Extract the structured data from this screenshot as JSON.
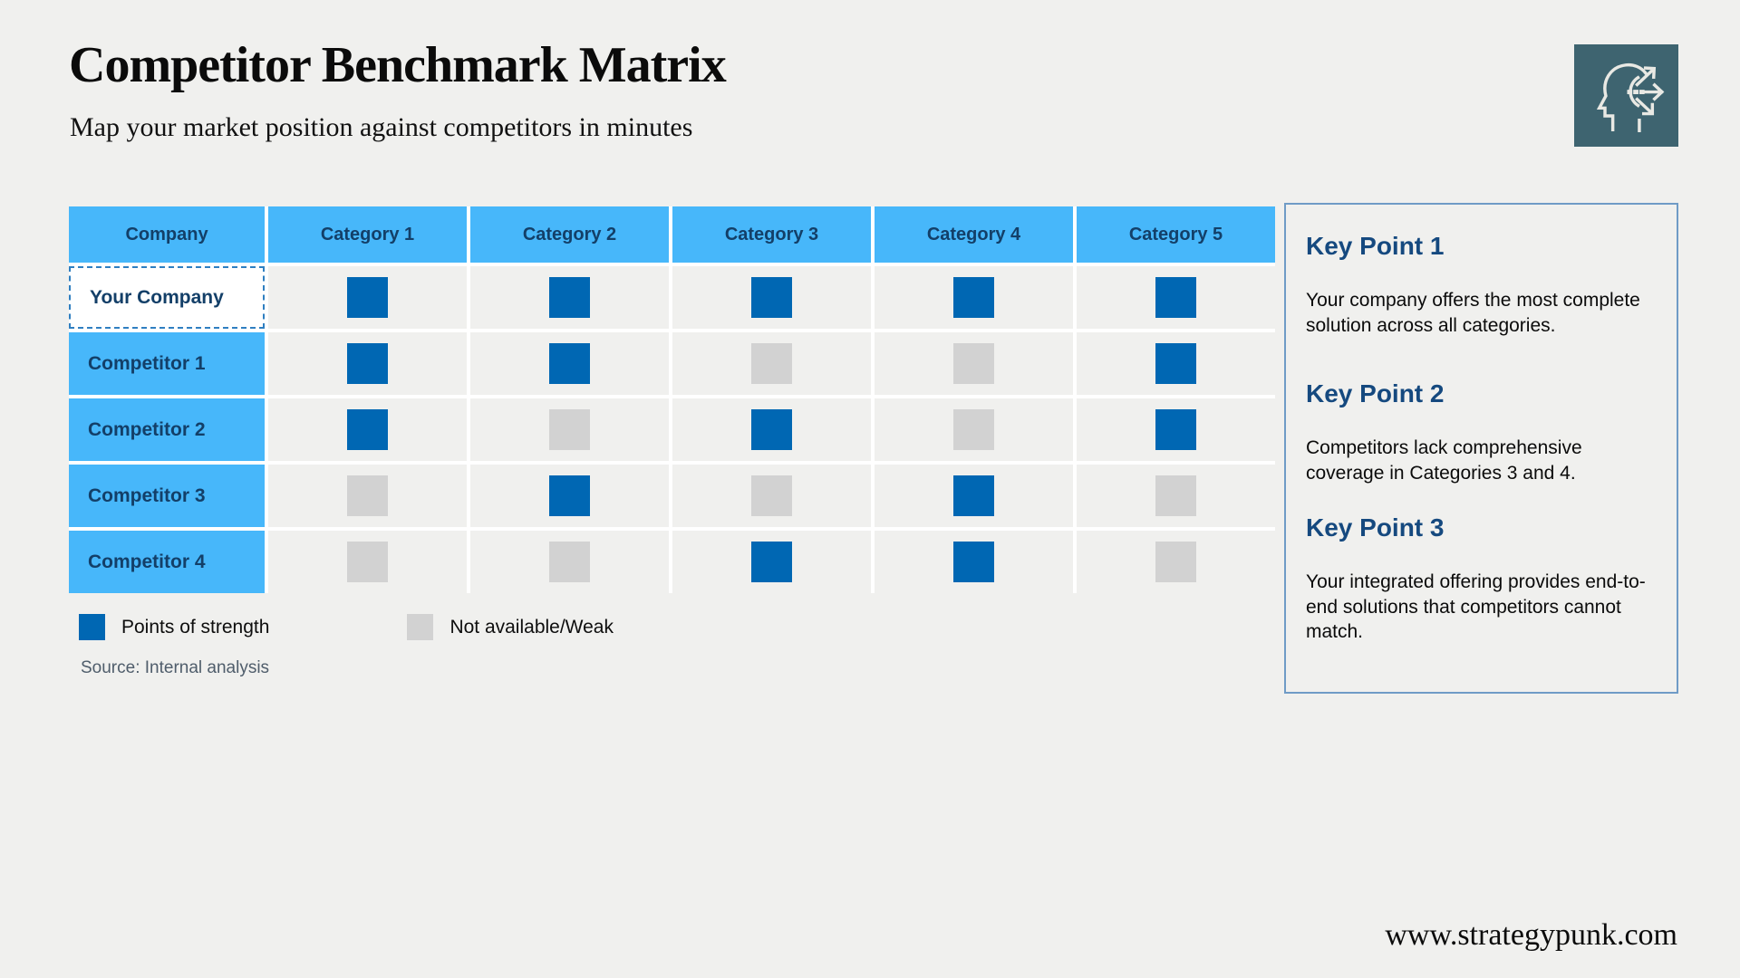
{
  "page": {
    "title": "Competitor Benchmark Matrix",
    "subtitle": "Map your market position against competitors in minutes",
    "footer_url": "www.strategypunk.com"
  },
  "logo": {
    "icon": "head-with-arrows-icon",
    "background_color": "#3e6470"
  },
  "matrix": {
    "columns": [
      "Company",
      "Category 1",
      "Category 2",
      "Category 3",
      "Category 4",
      "Category 5"
    ],
    "rows": [
      {
        "label": "Your Company",
        "highlight": true,
        "values": [
          1,
          1,
          1,
          1,
          1
        ]
      },
      {
        "label": "Competitor 1",
        "highlight": false,
        "values": [
          1,
          1,
          0,
          0,
          1
        ]
      },
      {
        "label": "Competitor 2",
        "highlight": false,
        "values": [
          1,
          0,
          1,
          0,
          1
        ]
      },
      {
        "label": "Competitor 3",
        "highlight": false,
        "values": [
          0,
          1,
          0,
          1,
          0
        ]
      },
      {
        "label": "Competitor 4",
        "highlight": false,
        "values": [
          0,
          0,
          1,
          1,
          0
        ]
      }
    ],
    "value_meaning": {
      "1": "Points of strength",
      "0": "Not available/Weak"
    }
  },
  "legend": {
    "strength_label": "Points of strength",
    "weak_label": "Not available/Weak",
    "strength_color": "#0067b3",
    "weak_color": "#d2d2d2"
  },
  "source": "Source: Internal analysis",
  "key_points": [
    {
      "heading": "Key Point 1",
      "text": "Your company offers the most complete solution across all categories."
    },
    {
      "heading": "Key Point 2",
      "text": "Competitors lack comprehensive coverage in Categories 3 and 4."
    },
    {
      "heading": "Key Point 3",
      "text": "Your integrated offering provides end-to-end solutions that competitors cannot match."
    }
  ],
  "colors": {
    "page_background": "#f0f0ee",
    "table_header_blue": "#47b7fa",
    "navy_text": "#133f68",
    "strength_blue": "#0067b3",
    "weak_gray": "#d2d2d2",
    "panel_border": "#6f9bc6",
    "logo_teal": "#3e6470"
  }
}
